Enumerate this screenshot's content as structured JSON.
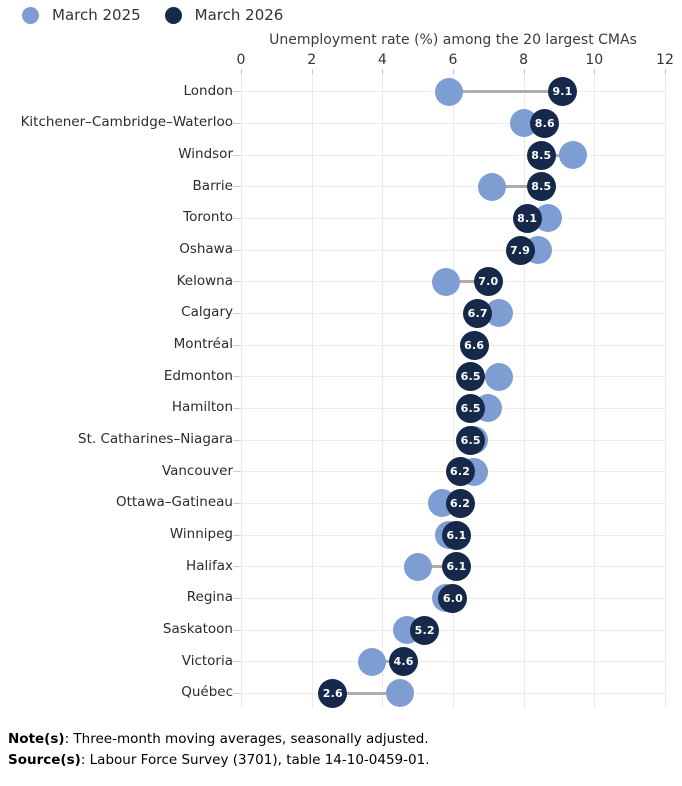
{
  "legend": {
    "items": [
      {
        "label": "March 2025",
        "color": "#7e9dd3"
      },
      {
        "label": "March 2026",
        "color": "#16294a"
      }
    ]
  },
  "chart_data": {
    "type": "dumbbell",
    "title": "Unemployment rate (%) among the 20 largest CMAs",
    "xlabel": "",
    "ylabel": "",
    "x_axis": {
      "min": 0,
      "max": 12,
      "ticks": [
        0,
        2,
        4,
        6,
        8,
        10,
        12
      ],
      "position": "top"
    },
    "grid": "vertical",
    "legend_position": "top-left",
    "categories": [
      "London",
      "Kitchener–Cambridge–Waterloo",
      "Windsor",
      "Barrie",
      "Toronto",
      "Oshawa",
      "Kelowna",
      "Calgary",
      "Montréal",
      "Edmonton",
      "Hamilton",
      "St. Catharines–Niagara",
      "Vancouver",
      "Ottawa–Gatineau",
      "Winnipeg",
      "Halifax",
      "Regina",
      "Saskatoon",
      "Victoria",
      "Québec"
    ],
    "series": [
      {
        "name": "March 2025",
        "labeled": false,
        "values": [
          5.9,
          8.0,
          9.4,
          7.1,
          8.7,
          8.4,
          5.8,
          7.3,
          6.6,
          7.3,
          7.0,
          6.6,
          6.6,
          5.7,
          5.9,
          5.0,
          5.8,
          4.7,
          3.7,
          4.5
        ]
      },
      {
        "name": "March 2026",
        "labeled": true,
        "data_labels": [
          "9.1",
          "8.6",
          "8.5",
          "8.5",
          "8.1",
          "7.9",
          "7.0",
          "6.7",
          "6.6",
          "6.5",
          "6.5",
          "6.5",
          "6.2",
          "6.2",
          "6.1",
          "6.1",
          "6.0",
          "5.2",
          "4.6",
          "2.6"
        ],
        "values": [
          9.1,
          8.6,
          8.5,
          8.5,
          8.1,
          7.9,
          7.0,
          6.7,
          6.6,
          6.5,
          6.5,
          6.5,
          6.2,
          6.2,
          6.1,
          6.1,
          6.0,
          5.2,
          4.6,
          2.6
        ]
      }
    ]
  },
  "notes": {
    "note_label": "Note(s)",
    "note_text": ": Three-month moving averages, seasonally adjusted.",
    "source_label": "Source(s)",
    "source_text": ": Labour Force Survey (3701), table 14-10-0459-01."
  },
  "colors": {
    "series_2025": "#7e9dd3",
    "series_2026": "#16294a",
    "connector": "#adadad",
    "gridline": "#eaeaea",
    "axis_text": "#333333",
    "background": "#ffffff"
  }
}
